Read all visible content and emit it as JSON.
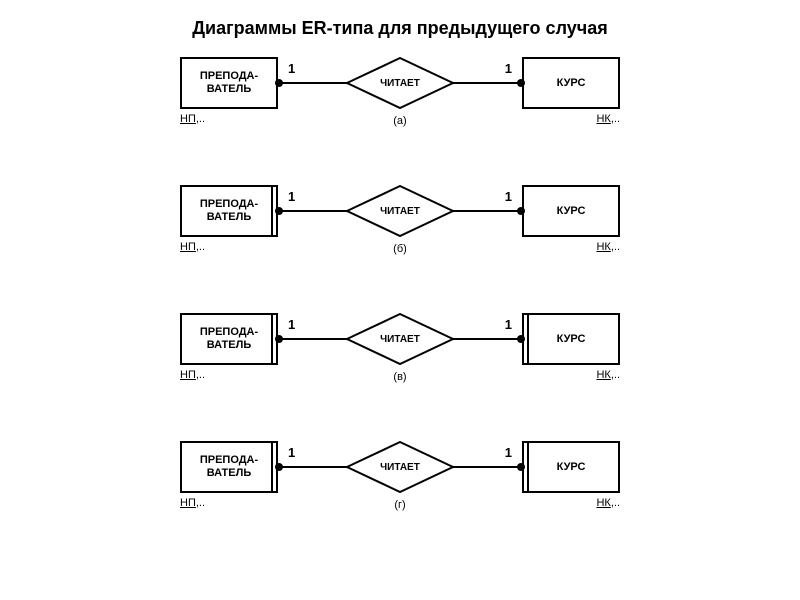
{
  "title": "Диаграммы ER-типа для предыдущего случая",
  "colors": {
    "stroke": "#000000",
    "bg": "#ffffff"
  },
  "common": {
    "left_entity": "ПРЕПОДА-\nВАТЕЛЬ",
    "right_entity": "КУРС",
    "relation": "ЧИТАЕТ",
    "left_attr_u": "НП",
    "left_attr_tail": ",..",
    "right_attr_u": "НК",
    "right_attr_tail": ",..",
    "card_left": "1",
    "card_right": "1"
  },
  "rows": [
    {
      "sub": "(а)",
      "left_double": false,
      "right_double": false
    },
    {
      "sub": "(б)",
      "left_double": true,
      "right_double": false
    },
    {
      "sub": "(в)",
      "left_double": true,
      "right_double": true
    },
    {
      "sub": "(г)",
      "left_double": true,
      "right_double": true
    }
  ]
}
